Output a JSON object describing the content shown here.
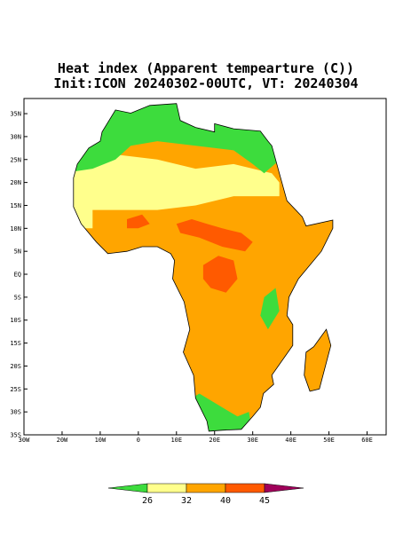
{
  "title": "Heat index (Apparent tempearture (C))",
  "subtitle": "Init:ICON 20240302-00UTC, VT: 20240304",
  "map": {
    "xlim": [
      -30,
      65
    ],
    "ylim": [
      -35,
      38.3
    ],
    "xticks": [
      {
        "value": -30,
        "label": "30W"
      },
      {
        "value": -20,
        "label": "20W"
      },
      {
        "value": -10,
        "label": "10W"
      },
      0,
      {
        "value": 10,
        "label": "10E"
      },
      {
        "value": 20,
        "label": "20E"
      },
      {
        "value": 30,
        "label": "30E"
      },
      {
        "value": 40,
        "label": "40E"
      },
      {
        "value": 50,
        "label": "50E"
      },
      {
        "value": 60,
        "label": "60E"
      }
    ],
    "yticks": [
      {
        "value": 35,
        "label": "35N"
      },
      {
        "value": 30,
        "label": "30N"
      },
      {
        "value": 25,
        "label": "25N"
      },
      {
        "value": 20,
        "label": "20N"
      },
      {
        "value": 15,
        "label": "15N"
      },
      {
        "value": 10,
        "label": "10N"
      },
      {
        "value": 5,
        "label": "5N"
      },
      {
        "value": 0,
        "label": "EQ"
      },
      {
        "value": -5,
        "label": "5S"
      },
      {
        "value": -10,
        "label": "10S"
      },
      {
        "value": -15,
        "label": "15S"
      },
      {
        "value": -20,
        "label": "20S"
      },
      {
        "value": -25,
        "label": "25S"
      },
      {
        "value": -30,
        "label": "30S"
      },
      {
        "value": -35,
        "label": "35S"
      }
    ]
  },
  "colorbar": {
    "levels": [
      26,
      32,
      40,
      45
    ],
    "colors": [
      "#3ddc3d",
      "#ffff8c",
      "#ffa500",
      "#ff5a00",
      "#a0005a"
    ]
  }
}
